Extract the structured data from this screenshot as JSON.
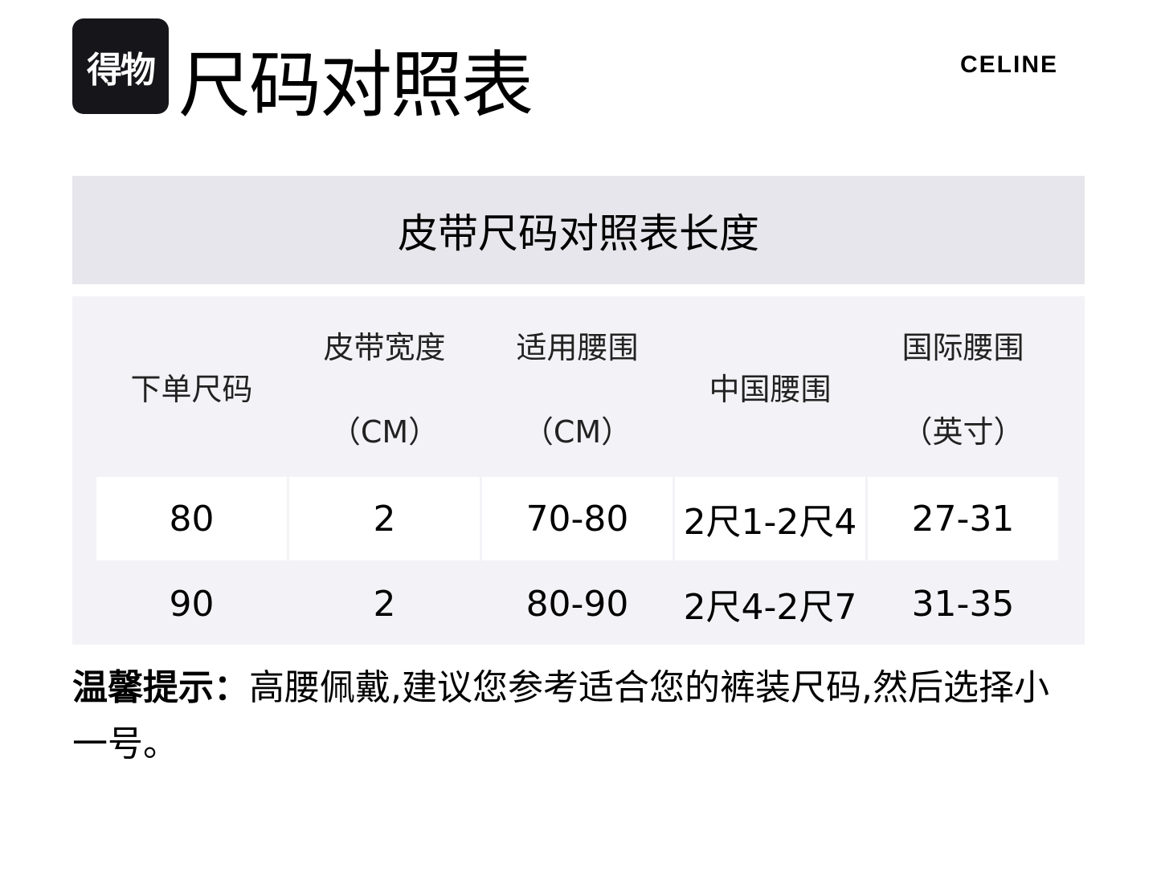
{
  "header": {
    "logo_text": "得物",
    "title": "尺码对照表",
    "brand": "CELINE"
  },
  "table": {
    "caption": "皮带尺码对照表长度",
    "columns": [
      {
        "line1": "下单尺码",
        "line2": ""
      },
      {
        "line1": "皮带宽度",
        "line2": "（CM）"
      },
      {
        "line1": "适用腰围",
        "line2": "（CM）"
      },
      {
        "line1": "中国腰围",
        "line2": ""
      },
      {
        "line1": "国际腰围",
        "line2": "（英寸）"
      }
    ],
    "rows": [
      [
        "80",
        "2",
        "70-80",
        "2尺1-2尺4",
        "27-31"
      ],
      [
        "90",
        "2",
        "80-90",
        "2尺4-2尺7",
        "31-35"
      ]
    ]
  },
  "tip": {
    "label": "温馨提示：",
    "text": "高腰佩戴,建议您参考适合您的裤装尺码,然后选择小一号。"
  },
  "colors": {
    "caption_band": "#e6e6ec",
    "table_bg": "#f3f3f7",
    "logo_bg": "#16161a"
  }
}
